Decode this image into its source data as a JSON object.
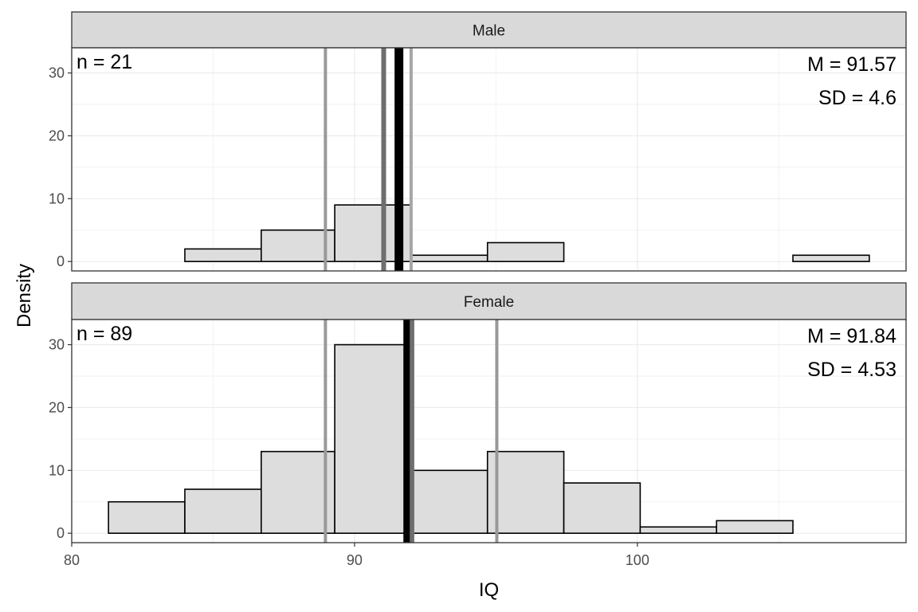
{
  "chart_data": {
    "type": "bar",
    "xlabel": "IQ",
    "ylabel": "Density",
    "xlim": [
      80,
      109.5
    ],
    "ylim": [
      -1.5,
      34
    ],
    "x_ticks": [
      80,
      90,
      100
    ],
    "y_ticks": [
      0,
      10,
      20,
      30
    ],
    "grid": true,
    "bin_edges": [
      81.3,
      84.0,
      86.7,
      89.3,
      92.0,
      94.7,
      97.4,
      100.1,
      102.8,
      105.5,
      108.2
    ],
    "panels": [
      {
        "strip": "Male",
        "n_label": "n = 21",
        "mean_label": "M = 91.57",
        "sd_label": "SD = 4.6",
        "values": [
          0,
          2,
          5,
          9,
          1,
          3,
          0,
          0,
          0,
          1
        ],
        "vlines": [
          {
            "x": 88.97,
            "color": "#999999",
            "width": 4
          },
          {
            "x": 91.03,
            "color": "#6e6e6e",
            "width": 6
          },
          {
            "x": 91.57,
            "color": "#000000",
            "width": 11
          },
          {
            "x": 92.0,
            "color": "#a6a6a6",
            "width": 4
          }
        ]
      },
      {
        "strip": "Female",
        "n_label": "n = 89",
        "mean_label": "M = 91.84",
        "sd_label": "SD = 4.53",
        "values": [
          5,
          7,
          13,
          30,
          10,
          13,
          8,
          1,
          2,
          0
        ],
        "vlines": [
          {
            "x": 88.97,
            "color": "#999999",
            "width": 4
          },
          {
            "x": 92.0,
            "color": "#6e6e6e",
            "width": 8
          },
          {
            "x": 91.84,
            "color": "#000000",
            "width": 8
          },
          {
            "x": 95.03,
            "color": "#999999",
            "width": 4
          }
        ]
      }
    ]
  }
}
